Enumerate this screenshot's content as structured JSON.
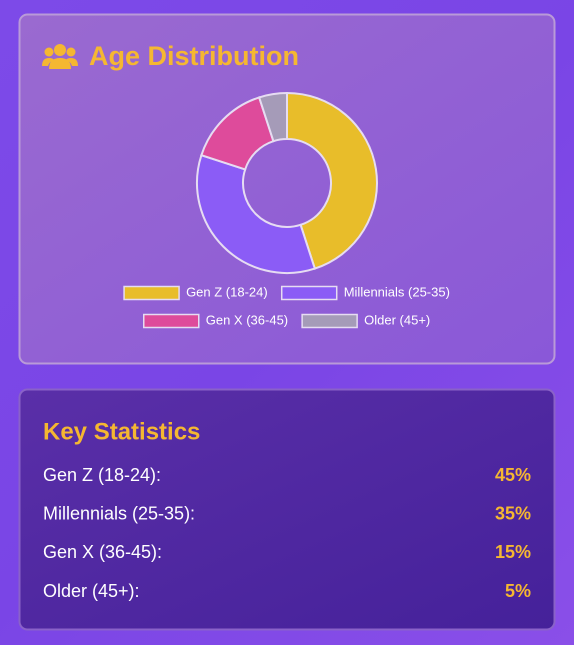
{
  "chart_data": {
    "type": "doughnut",
    "title": "Age Distribution",
    "categories": [
      "Gen Z (18-24)",
      "Millennials (25-35)",
      "Gen X (36-45)",
      "Older (45+)"
    ],
    "values": [
      45,
      35,
      15,
      5
    ],
    "colors": [
      "#e8bd2a",
      "#8b5cf6",
      "#de4b9b",
      "#a59bb8"
    ],
    "legend": "bottom"
  },
  "stats": {
    "title": "Key Statistics",
    "rows": [
      {
        "label": "Gen Z (18-24):",
        "value": "45%"
      },
      {
        "label": "Millennials (25-35):",
        "value": "35%"
      },
      {
        "label": "Gen X (36-45):",
        "value": "15%"
      },
      {
        "label": "Older (45+):",
        "value": "5%"
      }
    ]
  }
}
